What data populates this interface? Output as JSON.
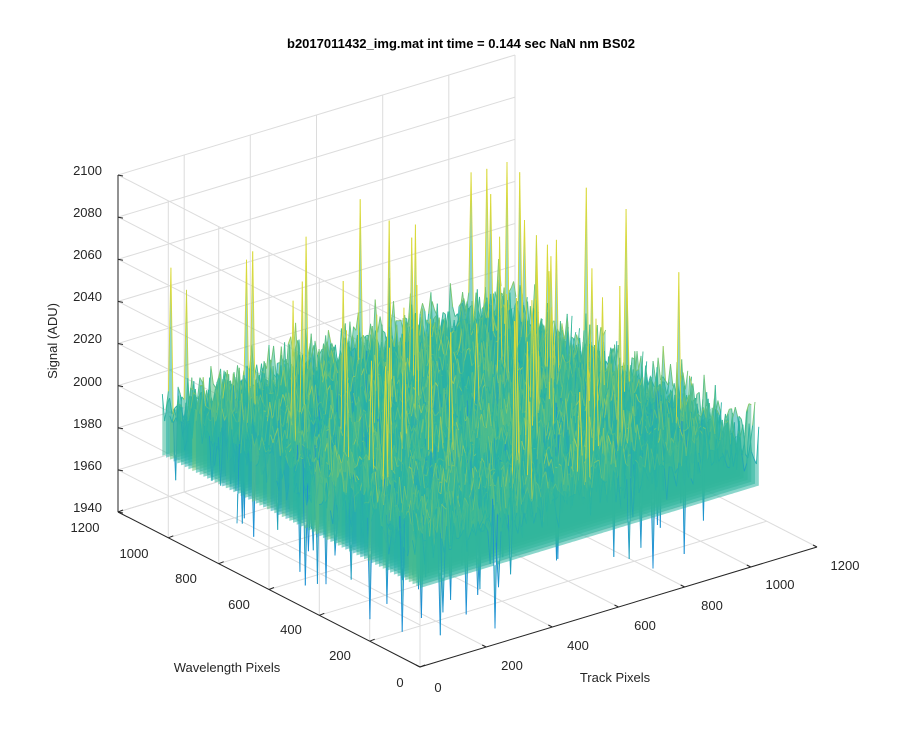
{
  "chart_data": {
    "type": "surface",
    "title": "b2017011432_img.mat int time = 0.144 sec  NaN nm BS02",
    "xlabel": "Track Pixels",
    "ylabel": "Wavelength Pixels",
    "zlabel": "Signal (ADU)",
    "xlim": [
      0,
      1200
    ],
    "ylim": [
      0,
      1200
    ],
    "zlim": [
      1940,
      2100
    ],
    "x_ticks": [
      "0",
      "200",
      "400",
      "600",
      "800",
      "1000",
      "1200"
    ],
    "y_ticks": [
      "0",
      "200",
      "400",
      "600",
      "800",
      "1000",
      "1200"
    ],
    "z_ticks": [
      "1940",
      "1960",
      "1980",
      "2000",
      "2020",
      "2040",
      "2060",
      "2080",
      "2100"
    ],
    "grid": true,
    "colormap": "parula",
    "colors": {
      "low": "#1b8fd4",
      "mid": "#2ab5a0",
      "high": "#d9d93a",
      "axis": "#262626",
      "grid": "#dcdcdc"
    },
    "data_extent": {
      "x": [
        0,
        1024
      ],
      "y": [
        0,
        1024
      ]
    },
    "surface_summary": {
      "mean": 2000,
      "typical_min": 1975,
      "typical_max": 2025,
      "min": 1945,
      "max": 2085
    }
  }
}
